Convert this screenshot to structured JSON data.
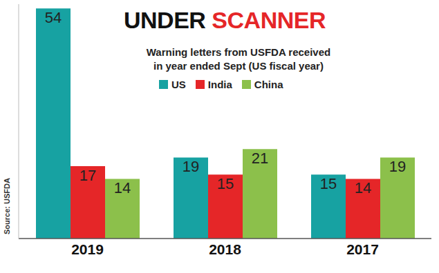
{
  "chart_data": {
    "type": "bar",
    "title": "UNDER SCANNER",
    "subtitle": "Warning letters from USFDA received in year ended Sept (US fiscal year)",
    "source": "Source: USFDA",
    "categories": [
      "2019",
      "2018",
      "2017"
    ],
    "series": [
      {
        "name": "US",
        "color": "#17a2a2",
        "values": [
          54,
          19,
          15
        ]
      },
      {
        "name": "India",
        "color": "#e52628",
        "values": [
          17,
          15,
          14
        ]
      },
      {
        "name": "China",
        "color": "#8cc04b",
        "values": [
          14,
          21,
          19
        ]
      }
    ],
    "ylim": [
      0,
      55
    ],
    "yticks": [
      0,
      55
    ],
    "grid": false,
    "legend": "top",
    "data_labels": true,
    "tick_labels": "x"
  }
}
